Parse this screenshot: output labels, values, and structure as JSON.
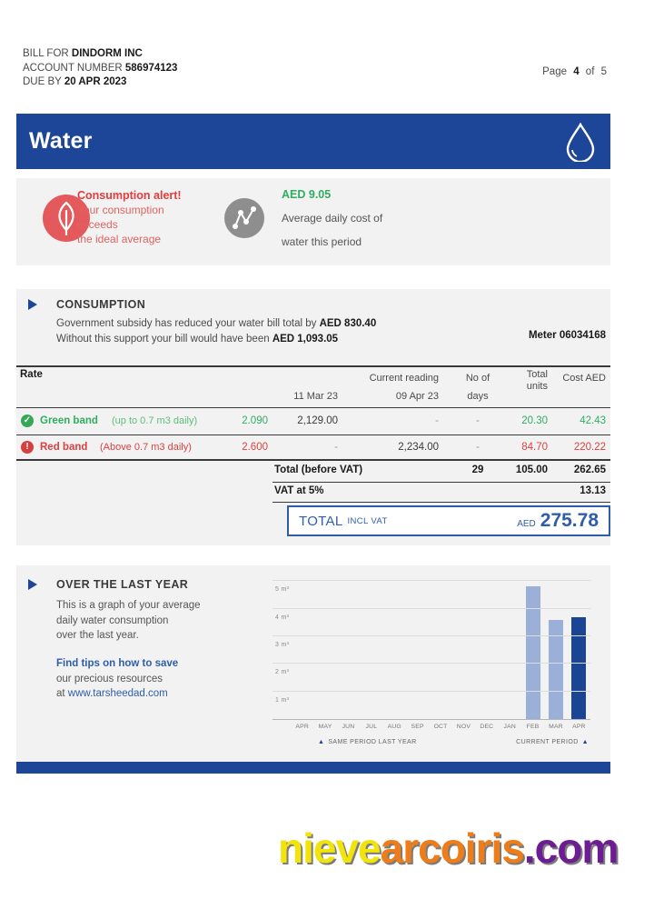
{
  "header": {
    "bill_for_label": "BILL FOR",
    "bill_for_value": "DINDORM INC",
    "account_label": "ACCOUNT NUMBER",
    "account_value": "586974123",
    "due_label": "DUE BY",
    "due_value": "20 APR 2023",
    "page_label": "Page",
    "page_number": "4",
    "of_label": "of",
    "page_total": "5"
  },
  "banner": {
    "title": "Water"
  },
  "alert": {
    "title": "Consumption alert!",
    "line1": "Your consumption",
    "line2": "exceeds",
    "line3": "the ideal average",
    "cost_value": "AED 9.05",
    "cost_line1": "Average daily cost of",
    "cost_line2": "water this period"
  },
  "consumption": {
    "title": "CONSUMPTION",
    "subsidy_line1": "Government subsidy has reduced your water bill total by",
    "subsidy_value1": "AED 830.40",
    "subsidy_line2": "Without this support your bill would have been",
    "subsidy_value2": "AED 1,093.05",
    "meter": "Meter 06034168"
  },
  "table": {
    "rate_label": "Rate",
    "headers": {
      "current_reading": "Current reading",
      "no_of": "No of",
      "days": "days",
      "total_units_1": "Total",
      "total_units_2": "units",
      "cost": "Cost AED",
      "prev_date": "11 Mar 23",
      "curr_date": "09 Apr 23"
    },
    "rows": [
      {
        "name": "Green band",
        "desc": "(up to 0.7 m3 daily)",
        "rate": "2.090",
        "prev": "2,129.00",
        "curr": "-",
        "days": "-",
        "units": "20.30",
        "cost": "42.43"
      },
      {
        "name": "Red band",
        "desc": "(Above 0.7 m3 daily)",
        "rate": "2.600",
        "prev": "-",
        "curr": "2,234.00",
        "days": "-",
        "units": "84.70",
        "cost": "220.22"
      }
    ],
    "total_row": {
      "label": "Total (before VAT)",
      "days": "29",
      "units": "105.00",
      "cost": "262.65"
    },
    "vat_row": {
      "label": "VAT at 5%",
      "cost": "13.13"
    }
  },
  "total_box": {
    "label_main": "TOTAL",
    "label_sub": "INCL VAT",
    "currency": "AED",
    "value": "275.78"
  },
  "last_year": {
    "title": "OVER THE LAST YEAR",
    "desc_line1": "This is a graph of your average",
    "desc_line2": "daily water consumption",
    "desc_line3": "over the last year.",
    "tips_bold": "Find tips on how to save",
    "tips_line2": "our precious resources",
    "tips_prefix": "at ",
    "tips_link": "www.tarsheedad.com"
  },
  "chart_data": {
    "type": "bar",
    "categories": [
      "APR",
      "MAY",
      "JUN",
      "JUL",
      "AUG",
      "SEP",
      "OCT",
      "NOV",
      "DEC",
      "JAN",
      "FEB",
      "MAR",
      "APR"
    ],
    "values": [
      null,
      null,
      null,
      null,
      null,
      null,
      null,
      null,
      null,
      null,
      4.8,
      3.6,
      3.7
    ],
    "unit": "m³",
    "ylabels": [
      {
        "value": 5,
        "label": "5 m³"
      },
      {
        "value": 4,
        "label": "4 m³"
      },
      {
        "value": 3,
        "label": "3 m³"
      },
      {
        "value": 2,
        "label": "2 m³"
      },
      {
        "value": 1,
        "label": "1 m³"
      }
    ],
    "ymax": 5.3,
    "grid": true,
    "highlight_index": 12,
    "bar_color": "#9ab0d8",
    "highlight_color": "#1a4494",
    "legend_left": "SAME PERIOD LAST YEAR",
    "legend_right": "CURRENT PERIOD"
  },
  "watermark": {
    "part1": "nieve",
    "part2": "arcoiris",
    "part3": ".com"
  },
  "colors": {
    "brand_blue": "#1d4699",
    "text_blue": "#2e5da9",
    "alert_red": "#e23c3c",
    "soft_red": "#e26262",
    "green": "#2fae60",
    "section_bg": "#f2f2f2",
    "bar_light": "#9ab0d8",
    "bar_dark": "#1a4494",
    "watermark_yellow": "#f2e30a",
    "watermark_orange": "#ee7c18",
    "watermark_purple": "#6d1d93"
  }
}
